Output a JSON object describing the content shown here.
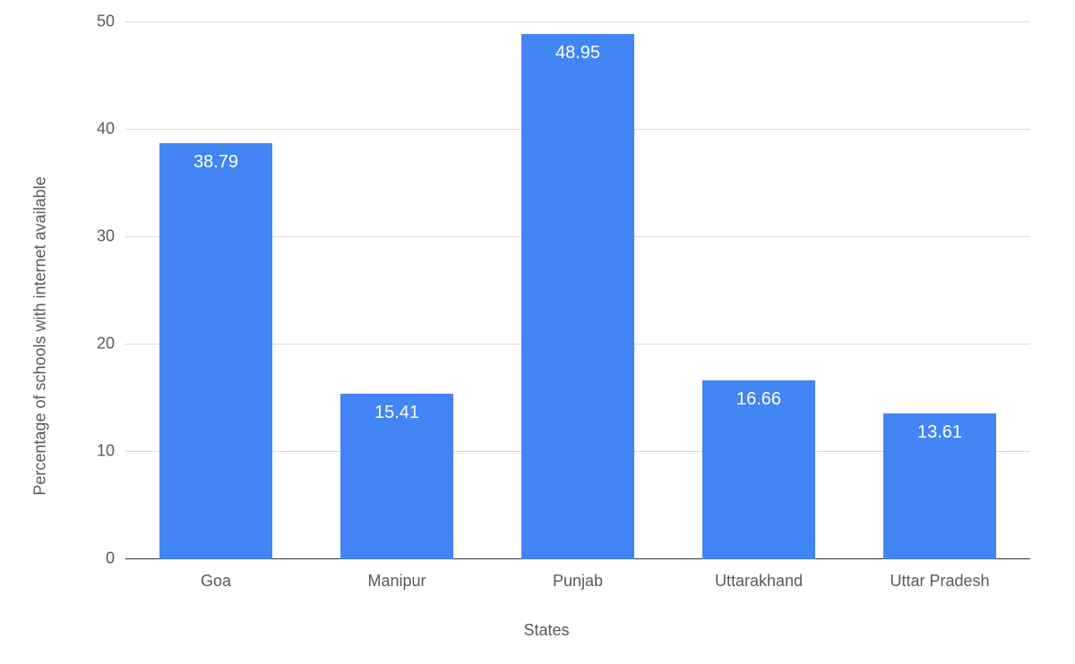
{
  "chart": {
    "type": "bar",
    "xlabel": "States",
    "ylabel": "Percentage of schools with internet available",
    "categories": [
      "Goa",
      "Manipur",
      "Punjab",
      "Uttarakhand",
      "Uttar Pradesh"
    ],
    "values": [
      38.79,
      15.41,
      48.95,
      16.66,
      13.61
    ],
    "value_labels": [
      "38.79",
      "15.41",
      "48.95",
      "16.66",
      "13.61"
    ],
    "bar_color": "#4285f4",
    "ylim": [
      0,
      50
    ],
    "ytick_step": 10,
    "yticks": [
      0,
      10,
      20,
      30,
      40,
      50
    ],
    "ytick_labels": [
      "0",
      "10",
      "20",
      "30",
      "40",
      "50"
    ],
    "grid_color": "#d9d9d9",
    "baseline_color": "#333333",
    "background_color": "#ffffff",
    "label_color": "#595959",
    "value_label_color": "#ffffff",
    "label_fontsize": 18,
    "tick_fontsize": 18,
    "value_fontsize": 20,
    "bar_width_ratio": 0.62
  }
}
